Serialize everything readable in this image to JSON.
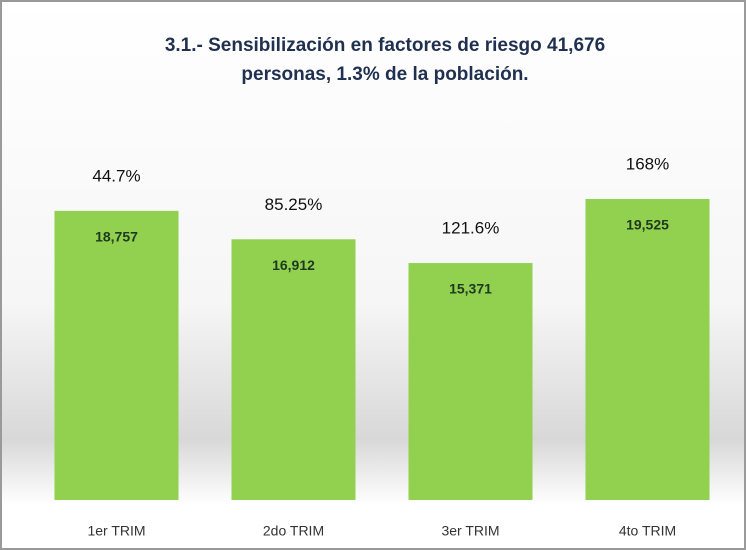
{
  "chart_data": {
    "type": "bar",
    "title": [
      "3.1.- Sensibilización en factores de riesgo 41,676",
      "personas, 1.3% de la población."
    ],
    "categories": [
      "1er TRIM",
      "2do TRIM",
      "3er TRIM",
      "4to TRIM"
    ],
    "values": [
      18757,
      16912,
      15371,
      19525
    ],
    "value_labels": [
      "18,757",
      "16,912",
      "15,371",
      "19,525"
    ],
    "annotations": [
      "44.7%",
      "85.25%",
      "121.6%",
      "168%"
    ],
    "color": "#92d050"
  }
}
